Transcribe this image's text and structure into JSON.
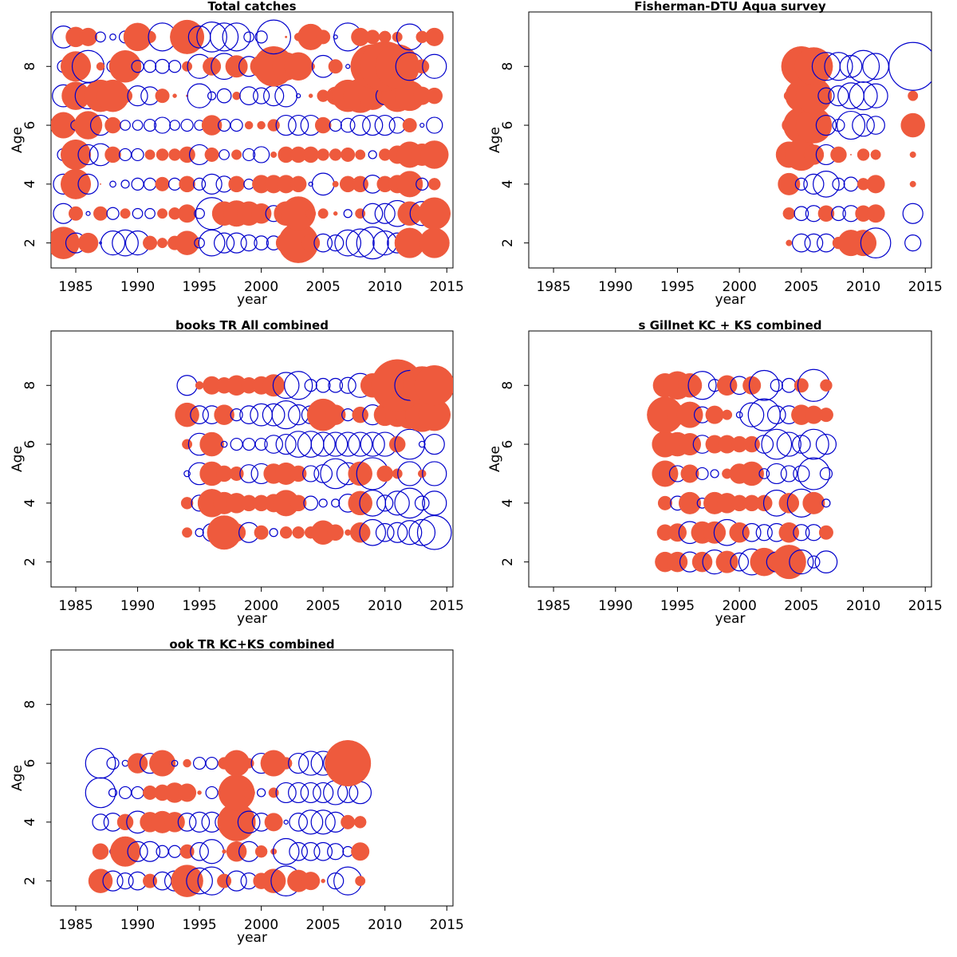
{
  "figure": {
    "colors": {
      "positive": "#EE5A3D",
      "negative": "#0000CC",
      "frame": "#000000"
    }
  },
  "chart_data": [
    {
      "type": "scatter",
      "subtype": "bubble-residuals",
      "title": "Total catches",
      "xlabel": "year",
      "ylabel": "Age",
      "xlim": [
        1983,
        2015.5
      ],
      "ylim": [
        1.15,
        9.85
      ],
      "xticks": [
        1985,
        1990,
        1995,
        2000,
        2005,
        2010,
        2015
      ],
      "yticks": [
        2,
        4,
        6,
        8
      ],
      "years": [
        1984,
        1985,
        1986,
        1987,
        1988,
        1989,
        1990,
        1991,
        1992,
        1993,
        1994,
        1995,
        1996,
        1997,
        1998,
        1999,
        2000,
        2001,
        2002,
        2003,
        2004,
        2005,
        2006,
        2007,
        2008,
        2009,
        2010,
        2011,
        2012,
        2013,
        2014
      ],
      "ages": [
        2,
        3,
        4,
        5,
        6,
        7,
        8,
        9
      ],
      "residuals": [
        [
          1.6,
          -1.0,
          1.0,
          -0.1,
          -1.2,
          -1.3,
          -1.2,
          0.7,
          0.5,
          0.7,
          1.2,
          -0.5,
          -1.3,
          -1.0,
          -1.0,
          -0.8,
          -0.7,
          -0.7,
          1.0,
          2.0,
          0.9,
          -0.9,
          -0.8,
          -1.3,
          -1.4,
          -1.6,
          -1.2,
          -1.0,
          1.5,
          -0.1,
          1.5
        ],
        [
          -1.0,
          0.7,
          -0.2,
          0.7,
          -0.6,
          0.5,
          -0.5,
          -0.5,
          0.5,
          0.6,
          0.9,
          -0.5,
          -1.6,
          1.2,
          1.3,
          1.2,
          1.0,
          -0.8,
          1.2,
          1.7,
          0.5,
          0.5,
          0.2,
          -0.4,
          0.5,
          -1.0,
          -1.0,
          -1.3,
          1.2,
          -1.2,
          1.6
        ],
        [
          -1.0,
          1.5,
          -1.0,
          0.05,
          -0.3,
          -0.4,
          -0.6,
          -0.6,
          0.7,
          -0.6,
          0.8,
          -0.6,
          -1.0,
          -0.8,
          0.8,
          -0.5,
          0.9,
          0.9,
          0.9,
          0.8,
          -0.2,
          -1.1,
          0.3,
          0.8,
          0.8,
          -0.9,
          0.8,
          0.9,
          1.3,
          -0.6,
          0.6
        ],
        [
          -0.6,
          1.5,
          -1.0,
          -1.1,
          0.8,
          -0.6,
          -0.6,
          0.5,
          0.6,
          0.6,
          0.8,
          -1.0,
          0.7,
          -0.5,
          0.5,
          -0.6,
          -0.8,
          0.3,
          0.8,
          0.8,
          0.8,
          0.6,
          0.6,
          0.7,
          0.5,
          -0.4,
          0.6,
          0.9,
          1.3,
          1.1,
          1.4
        ],
        [
          1.3,
          -0.5,
          1.4,
          -1.0,
          0.8,
          -0.5,
          -0.5,
          -0.6,
          -0.8,
          -0.5,
          -0.6,
          -0.5,
          1.0,
          -0.6,
          -0.6,
          0.4,
          0.4,
          0.6,
          -1.0,
          -1.0,
          -1.0,
          0.8,
          -0.6,
          -0.7,
          -1.0,
          -1.0,
          -1.0,
          -0.8,
          0.7,
          -0.2,
          -0.8
        ],
        [
          -1.1,
          1.4,
          -1.3,
          1.6,
          1.6,
          0.7,
          -1.0,
          -0.9,
          0.7,
          0.2,
          0.1,
          -1.2,
          -0.4,
          -0.7,
          0.4,
          -0.9,
          -0.8,
          -1.0,
          -1.1,
          -0.2,
          0.2,
          0.6,
          0.9,
          1.6,
          1.7,
          1.4,
          -0.9,
          1.6,
          1.5,
          0.9,
          0.8
        ],
        [
          -0.6,
          1.5,
          -1.6,
          0.4,
          -0.6,
          1.6,
          -0.6,
          -0.6,
          -0.7,
          -0.6,
          0.5,
          -1.2,
          0.9,
          -1.3,
          1.1,
          -1.0,
          1.1,
          2.0,
          1.4,
          1.4,
          0.4,
          -1.1,
          0.7,
          -0.2,
          0.6,
          2.2,
          2.5,
          2.2,
          -1.4,
          0.7,
          -1.2
        ],
        [
          -1.1,
          1.0,
          0.9,
          -0.5,
          -0.3,
          -0.6,
          1.4,
          0.6,
          -1.4,
          0.2,
          1.7,
          -1.1,
          -1.5,
          -1.4,
          -1.4,
          -0.5,
          -0.6,
          -1.7,
          0.1,
          0.4,
          1.3,
          0.7,
          -0.2,
          -1.4,
          0.9,
          0.7,
          0.6,
          0.5,
          -1.3,
          0.6,
          0.9
        ]
      ]
    },
    {
      "type": "scatter",
      "subtype": "bubble-residuals",
      "title": "Fisherman-DTU Aqua survey",
      "xlabel": "year",
      "ylabel": "Age",
      "xlim": [
        1983,
        2015.5
      ],
      "ylim": [
        1.15,
        9.85
      ],
      "xticks": [
        1985,
        1990,
        1995,
        2000,
        2005,
        2010,
        2015
      ],
      "yticks": [
        2,
        4,
        6,
        8
      ],
      "years": [
        2004,
        2005,
        2006,
        2007,
        2008,
        2009,
        2010,
        2011,
        2012,
        2013,
        2014
      ],
      "ages": [
        2,
        3,
        4,
        5,
        6,
        7,
        8
      ],
      "residuals": [
        [
          0.3,
          -0.9,
          -0.9,
          -0.9,
          0.6,
          1.3,
          1.3,
          -1.5,
          null,
          null,
          -0.8
        ],
        [
          0.6,
          -0.7,
          -0.8,
          0.8,
          -0.7,
          -0.8,
          0.8,
          0.9,
          null,
          null,
          -1.0
        ],
        [
          1.1,
          -0.6,
          -1.0,
          -1.3,
          -0.6,
          -0.7,
          0.6,
          0.9,
          null,
          null,
          0.3
        ],
        [
          1.3,
          1.6,
          1.0,
          -1.0,
          0.8,
          0.05,
          0.6,
          0.5,
          null,
          null,
          0.3
        ],
        [
          0.7,
          1.8,
          1.8,
          -1.0,
          -0.6,
          -1.4,
          -1.1,
          -0.9,
          null,
          null,
          1.2
        ],
        [
          0.5,
          1.6,
          1.8,
          -0.8,
          -1.0,
          -1.3,
          -1.4,
          -1.2,
          null,
          null,
          0.5
        ],
        [
          0.6,
          2.0,
          1.9,
          -1.4,
          -1.4,
          -1.1,
          -1.6,
          -1.3,
          null,
          null,
          -2.4
        ]
      ]
    },
    {
      "type": "scatter",
      "subtype": "bubble-residuals",
      "title": "books TR All combined",
      "xlabel": "year",
      "ylabel": "Age",
      "xlim": [
        1983,
        2015.5
      ],
      "ylim": [
        1.15,
        9.85
      ],
      "xticks": [
        1985,
        1990,
        1995,
        2000,
        2005,
        2010,
        2015
      ],
      "yticks": [
        2,
        4,
        6,
        8
      ],
      "years": [
        1994,
        1995,
        1996,
        1997,
        1998,
        1999,
        2000,
        2001,
        2002,
        2003,
        2004,
        2005,
        2006,
        2007,
        2008,
        2009,
        2010,
        2011,
        2012,
        2013,
        2014
      ],
      "ages": [
        3,
        4,
        5,
        6,
        7,
        8
      ],
      "residuals": [
        [
          0.5,
          -0.4,
          -0.9,
          1.7,
          0.9,
          -1.0,
          0.7,
          -0.4,
          0.6,
          0.6,
          0.6,
          1.2,
          0.8,
          0.3,
          1.0,
          -1.3,
          -0.9,
          -1.0,
          -1.2,
          -1.3,
          -1.7
        ],
        [
          0.6,
          -0.8,
          1.4,
          1.1,
          1.0,
          0.8,
          0.8,
          0.9,
          1.3,
          0.8,
          -0.7,
          -0.4,
          -0.4,
          -0.9,
          1.2,
          -1.3,
          -0.8,
          -1.2,
          -1.5,
          -0.7,
          -1.2
        ],
        [
          -0.3,
          -1.1,
          1.2,
          0.8,
          0.7,
          -0.9,
          -1.0,
          1.0,
          1.1,
          0.8,
          -0.8,
          -0.9,
          -1.5,
          -1.1,
          1.2,
          -1.6,
          0.8,
          0.5,
          -1.2,
          0.4,
          -1.2
        ],
        [
          0.5,
          -1.1,
          1.2,
          -0.3,
          -0.6,
          -0.6,
          -0.6,
          -0.9,
          -1.0,
          -1.3,
          -1.3,
          -1.2,
          -1.2,
          -1.2,
          -1.2,
          -1.2,
          -1.2,
          0.8,
          -1.5,
          -0.3,
          -1.0
        ],
        [
          1.2,
          -0.9,
          -0.9,
          1.0,
          -0.6,
          -0.9,
          -1.1,
          -1.1,
          -1.4,
          -1.0,
          -0.9,
          1.6,
          1.0,
          -0.6,
          0.8,
          -1.0,
          1.1,
          1.2,
          1.4,
          1.7,
          1.6
        ],
        [
          -1.0,
          0.4,
          0.9,
          0.8,
          1.0,
          0.8,
          0.9,
          1.1,
          -1.3,
          -1.4,
          -0.6,
          -0.7,
          -0.7,
          -0.8,
          -1.2,
          1.2,
          1.3,
          2.6,
          -1.5,
          1.9,
          2.0
        ]
      ]
    },
    {
      "type": "scatter",
      "subtype": "bubble-residuals",
      "title": "s Gillnet KC + KS combined",
      "xlabel": "year",
      "ylabel": "Age",
      "xlim": [
        1983,
        2015.5
      ],
      "ylim": [
        1.15,
        9.85
      ],
      "xticks": [
        1985,
        1990,
        1995,
        2000,
        2005,
        2010,
        2015
      ],
      "yticks": [
        2,
        4,
        6,
        8
      ],
      "years": [
        1994,
        1995,
        1996,
        1997,
        1998,
        1999,
        2000,
        2001,
        2002,
        2003,
        2004,
        2005,
        2006,
        2007
      ],
      "ages": [
        2,
        3,
        4,
        5,
        6,
        7,
        8
      ],
      "residuals": [
        [
          1.0,
          1.0,
          -1.0,
          1.0,
          -1.2,
          1.1,
          -0.9,
          -1.3,
          1.4,
          -1.0,
          1.7,
          -1.2,
          -0.6,
          -1.1
        ],
        [
          0.8,
          0.9,
          -1.1,
          1.1,
          1.1,
          -1.3,
          1.0,
          -0.9,
          -0.8,
          -0.9,
          1.0,
          -0.8,
          -0.8,
          0.7
        ],
        [
          0.7,
          -0.7,
          1.1,
          -0.5,
          1.1,
          1.0,
          0.8,
          0.8,
          0.8,
          -1.3,
          1.0,
          -1.4,
          1.1,
          -0.4
        ],
        [
          1.3,
          -0.8,
          0.9,
          -0.6,
          -0.4,
          0.5,
          1.0,
          1.2,
          -0.5,
          -1.0,
          -0.8,
          -0.8,
          -1.6,
          -0.6
        ],
        [
          1.3,
          1.2,
          1.1,
          -0.9,
          0.9,
          0.9,
          0.8,
          0.8,
          -0.9,
          -1.5,
          -1.2,
          -0.9,
          -1.5,
          -1.0
        ],
        [
          1.8,
          1.0,
          1.3,
          -0.8,
          0.9,
          0.5,
          -0.3,
          -1.2,
          -1.6,
          -0.9,
          -0.9,
          1.0,
          0.9,
          0.7
        ],
        [
          1.2,
          1.4,
          1.2,
          -1.4,
          -0.6,
          1.0,
          -0.9,
          0.9,
          -1.5,
          -0.6,
          -0.7,
          0.7,
          -1.6,
          0.6
        ]
      ]
    },
    {
      "type": "scatter",
      "subtype": "bubble-residuals",
      "title": "ook TR KC+KS combined",
      "xlabel": "year",
      "ylabel": "Age",
      "xlim": [
        1983,
        2015.5
      ],
      "ylim": [
        1.15,
        9.85
      ],
      "xticks": [
        1985,
        1990,
        1995,
        2000,
        2005,
        2010,
        2015
      ],
      "yticks": [
        2,
        4,
        6,
        8
      ],
      "years": [
        1987,
        1988,
        1989,
        1990,
        1991,
        1992,
        1993,
        1994,
        1995,
        1996,
        1997,
        1998,
        1999,
        2000,
        2001,
        2002,
        2003,
        2004,
        2005,
        2006,
        2007,
        2008
      ],
      "ages": [
        2,
        3,
        4,
        5,
        6
      ],
      "residuals": [
        [
          1.2,
          -1.0,
          -0.8,
          -0.9,
          0.7,
          -0.9,
          -1.0,
          1.6,
          -1.3,
          -1.4,
          0.7,
          -1.0,
          -0.8,
          0.8,
          1.2,
          -1.5,
          1.1,
          0.9,
          0.2,
          -0.8,
          -1.4,
          0.5
        ],
        [
          0.8,
          -0.3,
          1.5,
          -1.0,
          -1.0,
          -0.6,
          -0.6,
          0.7,
          -0.9,
          -1.2,
          0.2,
          1.0,
          -1.0,
          0.6,
          0.3,
          -1.3,
          -0.9,
          -0.9,
          -0.9,
          -0.8,
          -0.5,
          0.9
        ],
        [
          -0.8,
          -0.9,
          0.8,
          -1.1,
          1.0,
          1.1,
          1.0,
          -0.9,
          -1.0,
          -1.0,
          -0.9,
          1.9,
          -1.1,
          -0.9,
          0.9,
          -0.2,
          -0.9,
          -1.2,
          -1.2,
          -1.0,
          0.7,
          0.6
        ],
        [
          -1.5,
          -0.4,
          -0.6,
          -0.6,
          0.7,
          0.8,
          1.0,
          0.9,
          0.2,
          -0.6,
          0.6,
          1.8,
          0.6,
          -0.4,
          0.5,
          -1.0,
          -1.0,
          -1.0,
          -1.0,
          -1.2,
          -1.0,
          -1.1
        ],
        [
          -1.5,
          -0.6,
          -0.3,
          1.0,
          -1.0,
          1.3,
          -0.3,
          0.4,
          -0.6,
          -0.6,
          0.6,
          1.3,
          0.5,
          -1.0,
          1.3,
          0.6,
          -1.0,
          -1.2,
          -1.2,
          -1.2,
          2.3,
          null
        ]
      ]
    }
  ]
}
